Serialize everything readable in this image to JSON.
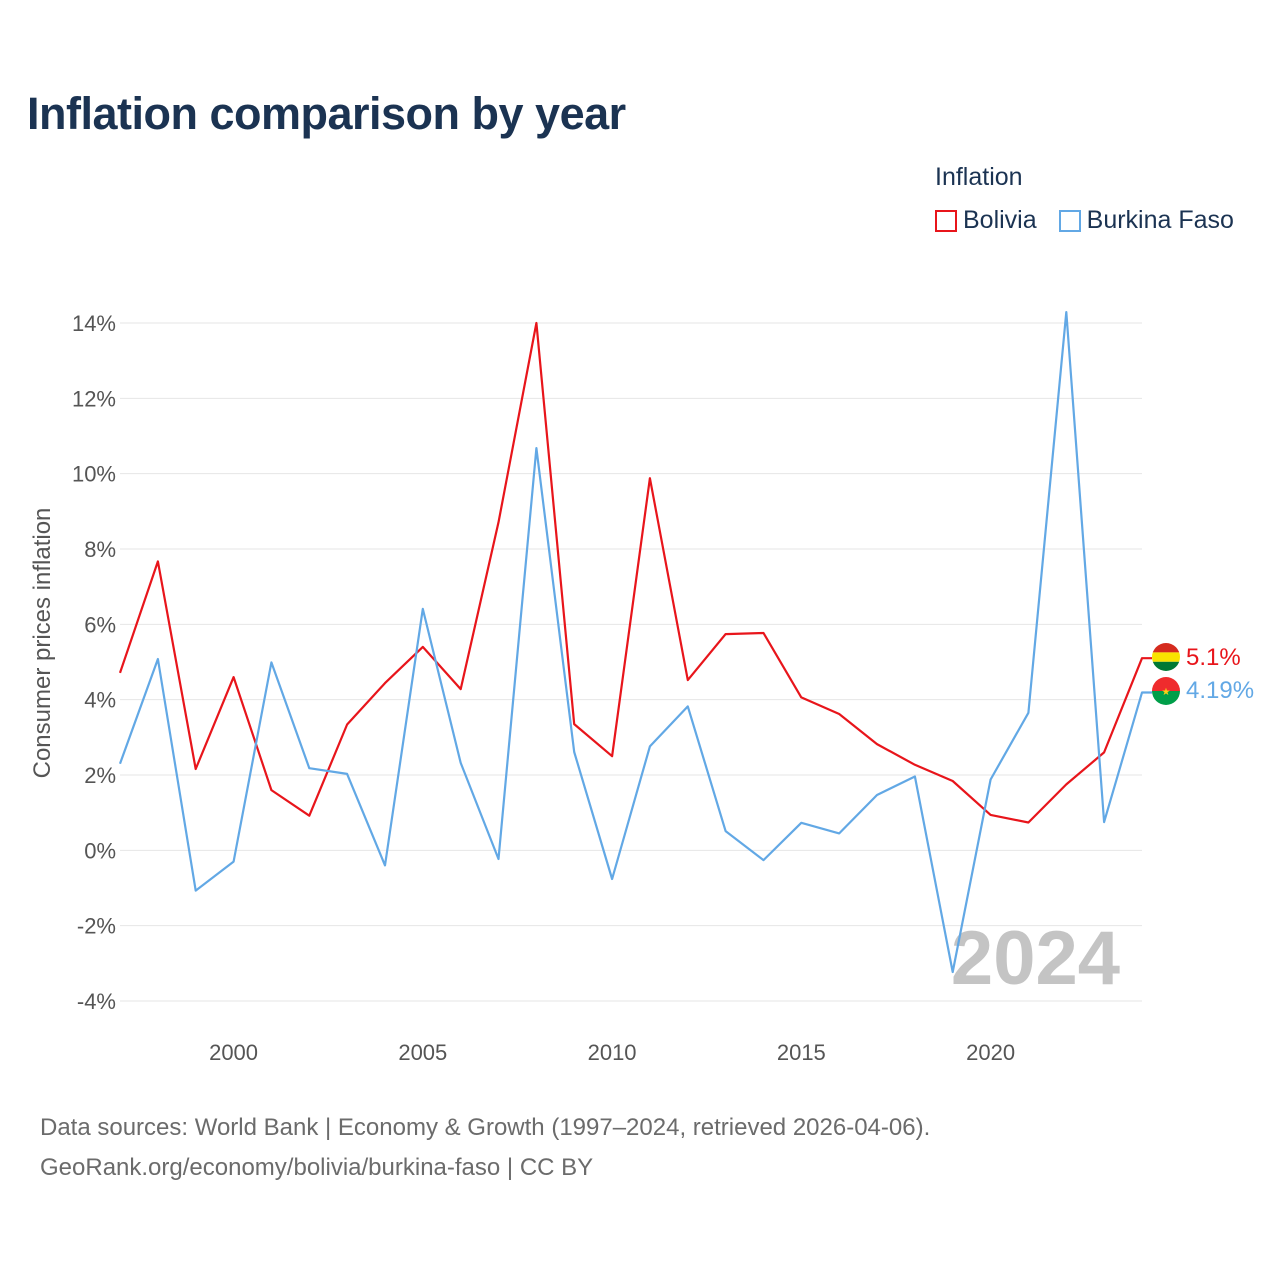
{
  "title": "Inflation comparison by year",
  "legend": {
    "title": "Inflation",
    "items": [
      {
        "label": "Bolivia",
        "color": "#e8151b"
      },
      {
        "label": "Burkina Faso",
        "color": "#62a8e5"
      }
    ]
  },
  "chart_data": {
    "type": "line",
    "title": "Inflation comparison by year",
    "ylabel": "Consumer prices inflation",
    "xlabel": "",
    "x": [
      1997,
      1998,
      1999,
      2000,
      2001,
      2002,
      2003,
      2004,
      2005,
      2006,
      2007,
      2008,
      2009,
      2010,
      2011,
      2012,
      2013,
      2014,
      2015,
      2016,
      2017,
      2018,
      2019,
      2020,
      2021,
      2022,
      2023,
      2024
    ],
    "xlim": [
      1997,
      2024
    ],
    "ylim": [
      -4,
      14
    ],
    "x_ticks": [
      2000,
      2005,
      2010,
      2015,
      2020
    ],
    "y_ticks": [
      -4,
      -2,
      0,
      2,
      4,
      6,
      8,
      10,
      12,
      14
    ],
    "y_tick_labels": [
      "-4%",
      "-2%",
      "0%",
      "2%",
      "4%",
      "6%",
      "8%",
      "10%",
      "12%",
      "14%"
    ],
    "grid": true,
    "series": [
      {
        "name": "Bolivia",
        "color": "#e8151b",
        "values": [
          4.71,
          7.67,
          2.16,
          4.6,
          1.6,
          0.92,
          3.34,
          4.44,
          5.4,
          4.28,
          8.71,
          14.0,
          3.35,
          2.5,
          9.88,
          4.52,
          5.74,
          5.77,
          4.06,
          3.62,
          2.82,
          2.27,
          1.84,
          0.94,
          0.74,
          1.75,
          2.6,
          5.1
        ],
        "end_label": "5.1%",
        "end_icon": "bolivia-flag-icon"
      },
      {
        "name": "Burkina Faso",
        "color": "#62a8e5",
        "values": [
          2.3,
          5.08,
          -1.07,
          -0.3,
          4.99,
          2.18,
          2.03,
          -0.4,
          6.41,
          2.32,
          -0.23,
          10.68,
          2.61,
          -0.76,
          2.76,
          3.82,
          0.51,
          -0.26,
          0.73,
          0.45,
          1.47,
          1.96,
          -3.23,
          1.88,
          3.65,
          14.29,
          0.75,
          4.19
        ],
        "end_label": "4.19%",
        "end_icon": "burkina-faso-flag-icon"
      }
    ],
    "annotations": [
      {
        "text": "2024",
        "position": "bottom-right"
      }
    ]
  },
  "source": {
    "line1": "Data sources: World Bank | Economy & Growth (1997–2024, retrieved 2026-04-06).",
    "line2": "GeoRank.org/economy/bolivia/burkina-faso | CC BY"
  }
}
